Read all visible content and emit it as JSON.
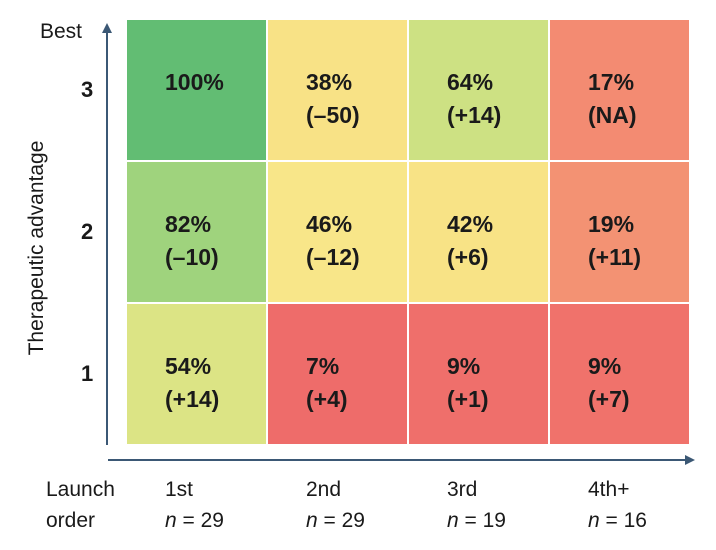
{
  "chart_data": {
    "type": "heatmap",
    "title": "",
    "ylabel": "Therapeutic advantage",
    "y_top_label": "Best",
    "xlabel_lines": [
      "Launch",
      "order"
    ],
    "rows": [
      "3",
      "2",
      "1"
    ],
    "columns": [
      {
        "label": "1st",
        "n_prefix": "n",
        "n_suffix": " = 29",
        "n_value": 29
      },
      {
        "label": "2nd",
        "n_prefix": "n",
        "n_suffix": " = 29",
        "n_value": 29
      },
      {
        "label": "3rd",
        "n_prefix": "n",
        "n_suffix": " = 19",
        "n_value": 19
      },
      {
        "label": "4th+",
        "n_prefix": "n",
        "n_suffix": " = 16",
        "n_value": 16
      }
    ],
    "cells": [
      [
        {
          "value": "100%",
          "change": "",
          "color": "#62bd73"
        },
        {
          "value": "38%",
          "change": "(–50)",
          "color": "#f8e286"
        },
        {
          "value": "64%",
          "change": "(+14)",
          "color": "#cde183"
        },
        {
          "value": "17%",
          "change": "(NA)",
          "color": "#f38b72"
        }
      ],
      [
        {
          "value": "82%",
          "change": "(–10)",
          "color": "#9fd37d"
        },
        {
          "value": "46%",
          "change": "(–12)",
          "color": "#f8e689"
        },
        {
          "value": "42%",
          "change": "(+6)",
          "color": "#f8e386"
        },
        {
          "value": "19%",
          "change": "(+11)",
          "color": "#f39273"
        }
      ],
      [
        {
          "value": "54%",
          "change": "(+14)",
          "color": "#dce485"
        },
        {
          "value": "7%",
          "change": "(+4)",
          "color": "#ee6c6a"
        },
        {
          "value": "9%",
          "change": "(+1)",
          "color": "#ef6f6b"
        },
        {
          "value": "9%",
          "change": "(+7)",
          "color": "#f0726b"
        }
      ]
    ]
  }
}
